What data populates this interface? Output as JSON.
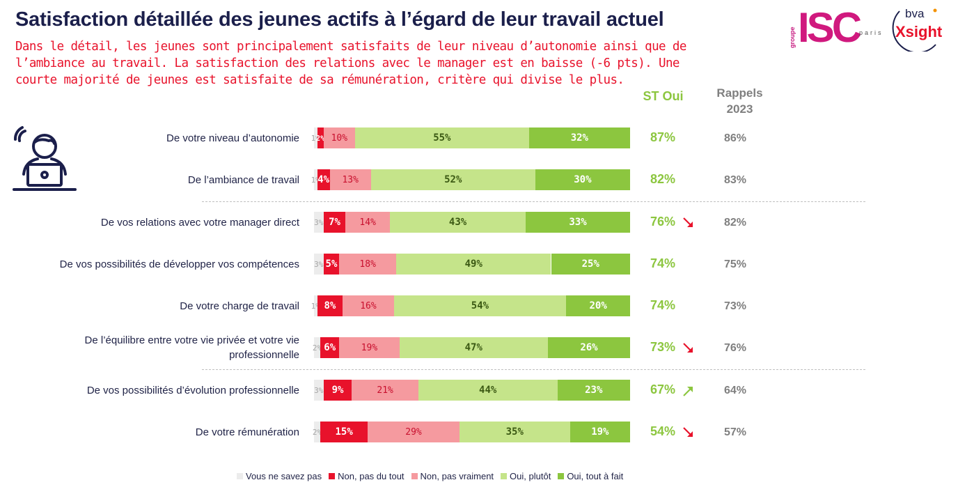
{
  "header": {
    "title": "Satisfaction détaillée des jeunes actifs à l’égard de leur travail actuel",
    "subtitle": "Dans le détail, les jeunes sont principalement satisfaits de leur niveau d’autonomie ainsi que de l’ambiance au travail. La satisfaction des relations avec le manager est en baisse (-6 pts). Une courte majorité de jeunes est satisfaite de sa rémunération, critère qui divise le plus."
  },
  "logos": {
    "isc_groupe": "groupe",
    "isc_name": "ISC",
    "isc_city": "paris",
    "bva_top": "bva",
    "bva_bottom": "Xsight"
  },
  "columns": {
    "st_oui": "ST Oui",
    "rappels": "Rappels 2023"
  },
  "colors": {
    "ne_sait_pas": "#ececec",
    "non_pas_du_tout": "#e8122b",
    "non_pas_vraiment": "#f59a9f",
    "oui_plutot": "#c5e48a",
    "oui_tout_a_fait": "#8cc63f",
    "title": "#1b1f4b",
    "subtitle": "#e8122b"
  },
  "chart_data": {
    "type": "bar",
    "orientation": "horizontal-stacked",
    "title": "Satisfaction détaillée des jeunes actifs à l’égard de leur travail actuel",
    "unit": "%",
    "legend_position": "bottom",
    "series_names": [
      "Vous ne savez pas",
      "Non, pas du tout",
      "Non, pas vraiment",
      "Oui, plutôt",
      "Oui, tout à fait"
    ],
    "categories": [
      "De votre niveau d’autonomie",
      "De l’ambiance de travail",
      "De vos relations avec votre manager direct",
      "De vos possibilités de développer vos compétences",
      "De votre charge de travail",
      "De l’équilibre entre votre vie privée et votre vie professionnelle",
      "De vos possibilités d’évolution professionnelle",
      "De votre rémunération"
    ],
    "series": [
      {
        "name": "Vous ne savez pas",
        "values": [
          1,
          1,
          3,
          3,
          1,
          2,
          3,
          2
        ]
      },
      {
        "name": "Non, pas du tout",
        "values": [
          2,
          4,
          7,
          5,
          8,
          6,
          9,
          15
        ]
      },
      {
        "name": "Non, pas vraiment",
        "values": [
          10,
          13,
          14,
          18,
          16,
          19,
          21,
          29
        ]
      },
      {
        "name": "Oui, plutôt",
        "values": [
          55,
          52,
          43,
          49,
          54,
          47,
          44,
          35
        ]
      },
      {
        "name": "Oui, tout à fait",
        "values": [
          32,
          30,
          33,
          25,
          20,
          26,
          23,
          19
        ]
      }
    ],
    "st_oui": [
      87,
      82,
      76,
      74,
      74,
      73,
      67,
      54
    ],
    "trend": [
      "none",
      "none",
      "down",
      "none",
      "none",
      "down",
      "up",
      "down"
    ],
    "rappels_2023": [
      86,
      83,
      82,
      75,
      73,
      76,
      64,
      57
    ],
    "separators_after_rows": [
      1,
      5
    ]
  }
}
